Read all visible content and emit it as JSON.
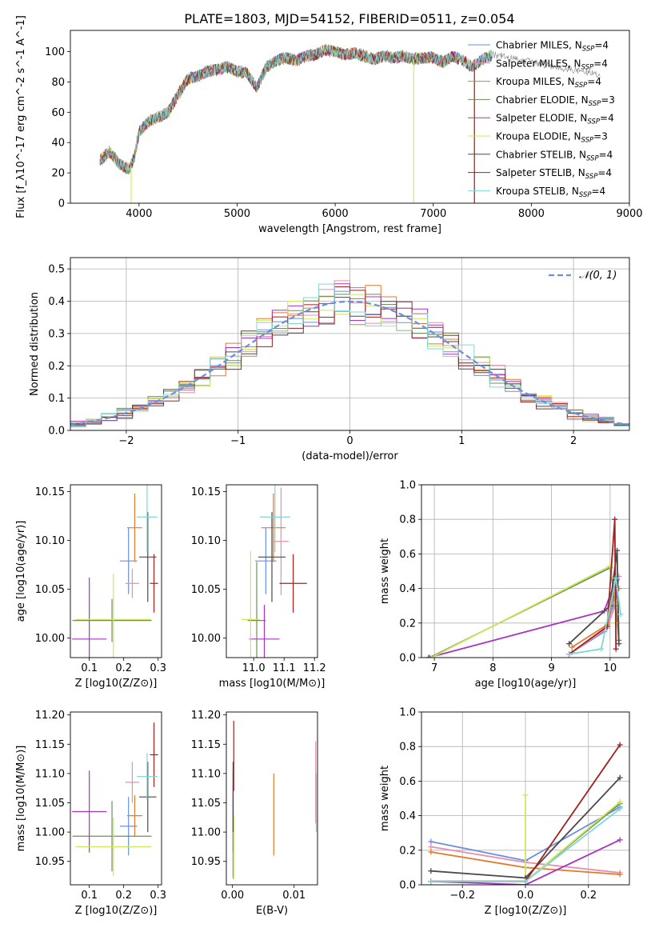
{
  "title": "PLATE=1803, MJD=54152, FIBERID=0511, z=0.054",
  "models": [
    {
      "name": "Chabrier MILES",
      "nssp": "4",
      "color": "#6b8fe0"
    },
    {
      "name": "Salpeter MILES",
      "nssp": "4",
      "color": "#e68fb0"
    },
    {
      "name": "Kroupa MILES",
      "nssp": "4",
      "color": "#e07b2a"
    },
    {
      "name": "Chabrier ELODIE",
      "nssp": "3",
      "color": "#6f8f5a"
    },
    {
      "name": "Salpeter ELODIE",
      "nssp": "4",
      "color": "#a833c4"
    },
    {
      "name": "Kroupa ELODIE",
      "nssp": "3",
      "color": "#cde85a"
    },
    {
      "name": "Chabrier STELIB",
      "nssp": "4",
      "color": "#4a4a4a"
    },
    {
      "name": "Salpeter STELIB",
      "nssp": "4",
      "color": "#a51f1f"
    },
    {
      "name": "Kroupa STELIB",
      "nssp": "4",
      "color": "#7fd8d8"
    }
  ],
  "chart_data": [
    {
      "id": "spectrum",
      "type": "line",
      "xlabel": "wavelength [Angstrom, rest frame]",
      "ylabel": "Flux [f_λ10^-17 erg cm^-2 s^-1 A^-1]",
      "xlim": [
        3300,
        9000
      ],
      "ylim": [
        0,
        114
      ],
      "xticks": [
        4000,
        5000,
        6000,
        7000,
        8000,
        9000
      ],
      "yticks": [
        0,
        20,
        40,
        60,
        80,
        100
      ],
      "legend": "top-right",
      "grid": false,
      "x": [
        3600,
        3700,
        3800,
        3900,
        3950,
        4000,
        4100,
        4200,
        4300,
        4400,
        4500,
        4600,
        4700,
        4800,
        4900,
        5000,
        5100,
        5200,
        5300,
        5400,
        5500,
        5600,
        5700,
        5800,
        5900,
        6000,
        6100,
        6200,
        6300,
        6400,
        6500,
        6600,
        6700,
        6800,
        6900,
        7000,
        7100,
        7200,
        7300,
        7400,
        7500,
        7600
      ],
      "y": [
        28,
        34,
        26,
        22,
        30,
        47,
        54,
        57,
        60,
        72,
        82,
        84,
        87,
        88,
        90,
        87,
        86,
        76,
        90,
        94,
        96,
        94,
        97,
        98,
        101,
        100,
        98,
        99,
        97,
        95,
        97,
        96,
        97,
        95,
        96,
        96,
        93,
        97,
        94,
        90,
        95,
        98
      ],
      "model_end": [
        7600,
        7600,
        7420,
        7600,
        7600,
        7600,
        7600,
        7420,
        7600
      ],
      "sky_drops": [
        [
          3920,
          5
        ],
        [
          6800,
          5
        ],
        [
          7420,
          2
        ],
        [
          7420,
          7
        ]
      ]
    },
    {
      "id": "residuals",
      "type": "line",
      "xlabel": "(data-model)/error",
      "ylabel": "Normed distribution",
      "xlim": [
        -2.5,
        2.5
      ],
      "ylim": [
        0,
        0.535
      ],
      "xticks": [
        -2,
        -1,
        0,
        1,
        2
      ],
      "yticks": [
        0.0,
        0.1,
        0.2,
        0.3,
        0.4,
        0.5
      ],
      "legend": "top-right",
      "legend_label": "N(0,1)",
      "grid": true,
      "bin_edges_range": [
        -2.5,
        2.5
      ],
      "nbins": 36
    },
    {
      "id": "age-vs-Z",
      "type": "scatter",
      "xlabel": "Z [log10(Z/Z⊙)]",
      "ylabel": "age  [log10(age/yr)]",
      "xlim": [
        0.045,
        0.31
      ],
      "ylim": [
        9.98,
        10.157
      ],
      "xticks": [
        0.1,
        0.2,
        0.3
      ],
      "yticks": [
        10.0,
        10.05,
        10.1,
        10.15
      ],
      "grid": false,
      "points": [
        {
          "x": 0.214,
          "xerr": 0.025,
          "y": 10.079,
          "yerr": 0.034
        },
        {
          "x": 0.225,
          "xerr": 0.02,
          "y": 10.056,
          "yerr": 0.015
        },
        {
          "x": 0.232,
          "xerr": 0.022,
          "y": 10.113,
          "yerr": 0.035
        },
        {
          "x": 0.166,
          "xerr": 0.115,
          "y": 10.018,
          "yerr": 0.022
        },
        {
          "x": 0.1,
          "xerr": 0.05,
          "y": 9.999,
          "yerr": 0.063
        },
        {
          "x": 0.17,
          "xerr": 0.11,
          "y": 10.019,
          "yerr": 0.047
        },
        {
          "x": 0.27,
          "xerr": 0.025,
          "y": 10.083,
          "yerr": 0.046
        },
        {
          "x": 0.288,
          "xerr": 0.012,
          "y": 10.056,
          "yerr": 0.03
        },
        {
          "x": 0.268,
          "xerr": 0.03,
          "y": 10.124,
          "yerr": 0.036
        }
      ]
    },
    {
      "id": "age-vs-mass",
      "type": "scatter",
      "xlabel": "mass [log10(M/M⊙)]",
      "ylabel": "",
      "xlim": [
        10.91,
        11.21
      ],
      "ylim": [
        9.98,
        10.157
      ],
      "xticks": [
        11.0,
        11.1,
        11.2
      ],
      "yticks": [
        10.0,
        10.05,
        10.1,
        10.15
      ],
      "grid": false,
      "points": [
        {
          "x": 11.04,
          "xerr": 0.035,
          "y": 10.079,
          "yerr": 0.034
        },
        {
          "x": 11.09,
          "xerr": 0.025,
          "y": 10.099,
          "yerr": 0.055
        },
        {
          "x": 11.065,
          "xerr": 0.04,
          "y": 10.113,
          "yerr": 0.035
        },
        {
          "x": 11.01,
          "xerr": 0.03,
          "y": 10.018,
          "yerr": 0.06
        },
        {
          "x": 11.035,
          "xerr": 0.05,
          "y": 9.999,
          "yerr": 0.035
        },
        {
          "x": 10.99,
          "xerr": 0.03,
          "y": 10.019,
          "yerr": 0.07
        },
        {
          "x": 11.06,
          "xerr": 0.045,
          "y": 10.083,
          "yerr": 0.046
        },
        {
          "x": 11.13,
          "xerr": 0.045,
          "y": 10.056,
          "yerr": 0.03
        },
        {
          "x": 11.07,
          "xerr": 0.05,
          "y": 10.124,
          "yerr": 0.036
        }
      ]
    },
    {
      "id": "weight-vs-age",
      "type": "line",
      "xlabel": "age  [log10(age/yr)]",
      "ylabel": "mass weight",
      "xlim": [
        6.78,
        10.33
      ],
      "ylim": [
        0,
        1
      ],
      "xticks": [
        7,
        8,
        9,
        10
      ],
      "yticks": [
        0.0,
        0.2,
        0.4,
        0.6,
        0.8,
        1.0
      ],
      "grid": true,
      "series": [
        {
          "x": [
            9.3,
            9.9,
            10.05,
            10.12
          ],
          "y": [
            0.02,
            0.15,
            0.3,
            0.45
          ]
        },
        {
          "x": [
            9.35,
            9.95,
            10.1,
            10.15
          ],
          "y": [
            0.03,
            0.17,
            0.32,
            0.47
          ]
        },
        {
          "x": [
            9.35,
            9.95,
            10.05,
            10.15
          ],
          "y": [
            0.06,
            0.19,
            0.35,
            0.4
          ]
        },
        {
          "x": [
            6.92,
            10.0,
            10.1,
            10.15
          ],
          "y": [
            0.0,
            0.52,
            0.3,
            0.1
          ]
        },
        {
          "x": [
            6.9,
            9.9,
            10.1,
            10.1
          ],
          "y": [
            0.0,
            0.27,
            0.45,
            0.35
          ]
        },
        {
          "x": [
            6.95,
            10.0,
            10.08,
            10.1
          ],
          "y": [
            0.0,
            0.53,
            0.4,
            0.2
          ]
        },
        {
          "x": [
            9.3,
            10.0,
            10.12,
            10.15
          ],
          "y": [
            0.08,
            0.3,
            0.62,
            0.08
          ]
        },
        {
          "x": [
            9.3,
            9.95,
            10.08,
            10.1
          ],
          "y": [
            0.02,
            0.18,
            0.8,
            0.05
          ]
        },
        {
          "x": [
            9.3,
            9.85,
            10.1,
            10.18
          ],
          "y": [
            0.02,
            0.05,
            0.46,
            0.25
          ]
        }
      ]
    },
    {
      "id": "mass-vs-Z",
      "type": "scatter",
      "xlabel": "Z [log10(Z/Z⊙)]",
      "ylabel": "mass [log10(M/M⊙)]",
      "xlim": [
        0.045,
        0.31
      ],
      "ylim": [
        10.91,
        11.205
      ],
      "xticks": [
        0.1,
        0.2,
        0.3
      ],
      "yticks": [
        10.95,
        11.0,
        11.05,
        11.1,
        11.15,
        11.2
      ],
      "grid": false,
      "points": [
        {
          "x": 0.214,
          "xerr": 0.025,
          "y": 11.01,
          "yerr": 0.05
        },
        {
          "x": 0.225,
          "xerr": 0.02,
          "y": 11.085,
          "yerr": 0.035
        },
        {
          "x": 0.232,
          "xerr": 0.022,
          "y": 11.028,
          "yerr": 0.035
        },
        {
          "x": 0.166,
          "xerr": 0.115,
          "y": 10.993,
          "yerr": 0.06
        },
        {
          "x": 0.1,
          "xerr": 0.05,
          "y": 11.035,
          "yerr": 0.07
        },
        {
          "x": 0.17,
          "xerr": 0.11,
          "y": 10.975,
          "yerr": 0.05
        },
        {
          "x": 0.27,
          "xerr": 0.025,
          "y": 11.06,
          "yerr": 0.06
        },
        {
          "x": 0.288,
          "xerr": 0.012,
          "y": 11.132,
          "yerr": 0.055
        },
        {
          "x": 0.268,
          "xerr": 0.03,
          "y": 11.095,
          "yerr": 0.04
        }
      ]
    },
    {
      "id": "mass-vs-ebv",
      "type": "scatter",
      "xlabel": "E(B-V)",
      "ylabel": "",
      "xlim": [
        -0.001,
        0.0138
      ],
      "ylim": [
        10.91,
        11.205
      ],
      "xticks": [
        0.0,
        0.01
      ],
      "yticks": [
        10.95,
        11.0,
        11.05,
        11.1,
        11.15,
        11.2
      ],
      "grid": false,
      "points": [
        {
          "x": 0.0001,
          "xerr": 0,
          "y": 11.0,
          "yerr": 0.08
        },
        {
          "x": 0.0135,
          "xerr": 0,
          "y": 11.085,
          "yerr": 0.07
        },
        {
          "x": 0.0067,
          "xerr": 0,
          "y": 11.03,
          "yerr": 0.07
        },
        {
          "x": 0.0001,
          "xerr": 0,
          "y": 10.995,
          "yerr": 0.07
        },
        {
          "x": 0.0001,
          "xerr": 0,
          "y": 11.035,
          "yerr": 0.07
        },
        {
          "x": 0.0002,
          "xerr": 0,
          "y": 10.975,
          "yerr": 0.055
        },
        {
          "x": 0.0001,
          "xerr": 0,
          "y": 11.06,
          "yerr": 0.06
        },
        {
          "x": 0.0002,
          "xerr": 0,
          "y": 11.13,
          "yerr": 0.06
        },
        {
          "x": 0.0136,
          "xerr": 0,
          "y": 11.05,
          "yerr": 0.05
        }
      ]
    },
    {
      "id": "weight-vs-Z",
      "type": "line",
      "xlabel": "Z [log10(Z/Z⊙)]",
      "ylabel": "mass weight",
      "xlim": [
        -0.33,
        0.33
      ],
      "ylim": [
        0,
        1
      ],
      "xticks": [
        -0.2,
        0.0,
        0.2
      ],
      "yticks": [
        0.0,
        0.2,
        0.4,
        0.6,
        0.8,
        1.0
      ],
      "grid": true,
      "series": [
        {
          "x": [
            -0.3,
            0.0,
            0.3
          ],
          "y": [
            0.25,
            0.14,
            0.45
          ]
        },
        {
          "x": [
            -0.3,
            0.0,
            0.3
          ],
          "y": [
            0.22,
            0.13,
            0.07
          ]
        },
        {
          "x": [
            -0.3,
            0.0,
            0.3
          ],
          "y": [
            0.19,
            0.1,
            0.06
          ]
        },
        {
          "x": [
            -0.3,
            0.0,
            0.3
          ],
          "y": [
            0.02,
            0.02,
            0.47
          ]
        },
        {
          "x": [
            -0.3,
            0.0,
            0.3
          ],
          "y": [
            0.02,
            0.0,
            0.26
          ]
        },
        {
          "x": [
            0.0,
            0.0,
            0.3
          ],
          "y": [
            0.52,
            0.02,
            0.48
          ]
        },
        {
          "x": [
            -0.3,
            0.0,
            0.3
          ],
          "y": [
            0.08,
            0.04,
            0.62
          ]
        },
        {
          "x": [
            -0.3,
            0.0,
            0.3
          ],
          "y": [
            0.02,
            0.02,
            0.81
          ]
        },
        {
          "x": [
            -0.3,
            0.0,
            0.3
          ],
          "y": [
            0.02,
            0.02,
            0.44
          ]
        }
      ]
    }
  ]
}
